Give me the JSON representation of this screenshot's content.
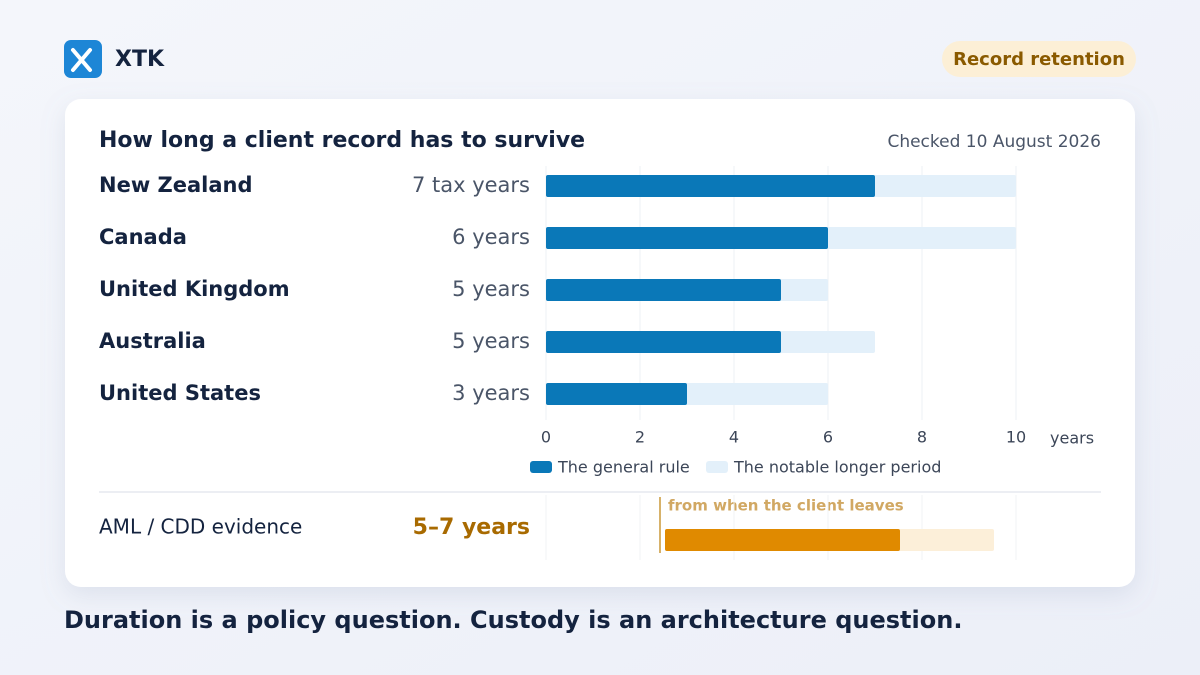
{
  "header": {
    "brand": "XTK",
    "badge": "Record retention"
  },
  "chart_data": {
    "type": "bar",
    "orientation": "horizontal",
    "title": "How long a client record has to survive",
    "subtitle": "Checked 10 August 2026",
    "categories": [
      "New Zealand",
      "Canada",
      "United Kingdom",
      "Australia",
      "United States"
    ],
    "series": [
      {
        "name": "The general rule",
        "color": "#0a78b8",
        "values": [
          7,
          6,
          5,
          5,
          3
        ],
        "value_labels": [
          "7 tax years",
          "6 years",
          "5 years",
          "5 years",
          "3 years"
        ]
      },
      {
        "name": "The notable longer period",
        "color": "#e3f0fa",
        "values": [
          10,
          10,
          6,
          7,
          6
        ]
      }
    ],
    "xlim": [
      0,
      10
    ],
    "xticks": [
      0,
      2,
      4,
      6,
      8,
      10
    ],
    "xlabel": "years",
    "grid": true,
    "legend": "bottom"
  },
  "aml": {
    "label": "AML / CDD evidence",
    "value_label": "5–7 years",
    "annotation": "from when the client leaves",
    "min": 5,
    "max": 7,
    "colors": [
      "#e08a00",
      "#fcefd9"
    ]
  },
  "footer": "Duration is a policy question. Custody is an architecture question."
}
